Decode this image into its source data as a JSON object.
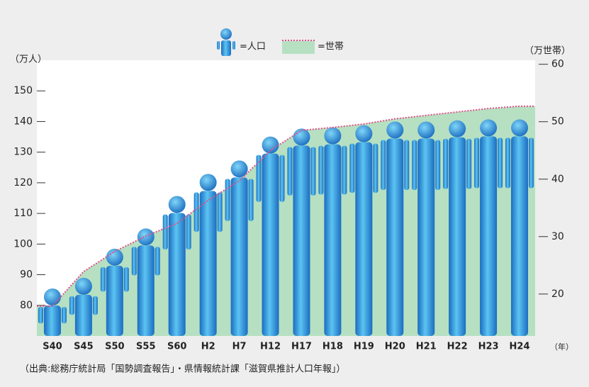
{
  "chart_data": {
    "type": "pictograph",
    "categories": [
      "S40",
      "S45",
      "S50",
      "S55",
      "S60",
      "H2",
      "H7",
      "H12",
      "H17",
      "H18",
      "H19",
      "H20",
      "H21",
      "H22",
      "H23",
      "H24"
    ],
    "series": [
      {
        "name": "=人口",
        "color": "#1f7fd2",
        "values": [
          85.5,
          89,
          98.5,
          105.1,
          115.7,
          122.9,
          127.3,
          135.1,
          137.7,
          138.1,
          138.8,
          140,
          140,
          140.4,
          140.7,
          140.7
        ]
      },
      {
        "name": "=世帯",
        "color": "#b6e0c1",
        "axis": "y2",
        "values": [
          17.9,
          23.9,
          27.4,
          30.1,
          32.3,
          36.3,
          39.7,
          45.0,
          48.5,
          49.0,
          49.6,
          50.5,
          51.1,
          51.7,
          52.3,
          52.7
        ]
      }
    ],
    "line_color": "#e0508a",
    "ylabel": "（万人）",
    "y2label": "（万世帯）",
    "xlabel": "（年）",
    "ylim": [
      70,
      160
    ],
    "yticks": [
      80,
      90,
      100,
      110,
      120,
      130,
      140,
      150
    ],
    "y2lim": [
      12.7,
      60.7
    ],
    "y2ticks": [
      20,
      30,
      40,
      50,
      60
    ],
    "source": "（出典:総務庁統計局「国勢調査報告」・県情報統計課「滋賀県推計人口年報」）"
  }
}
